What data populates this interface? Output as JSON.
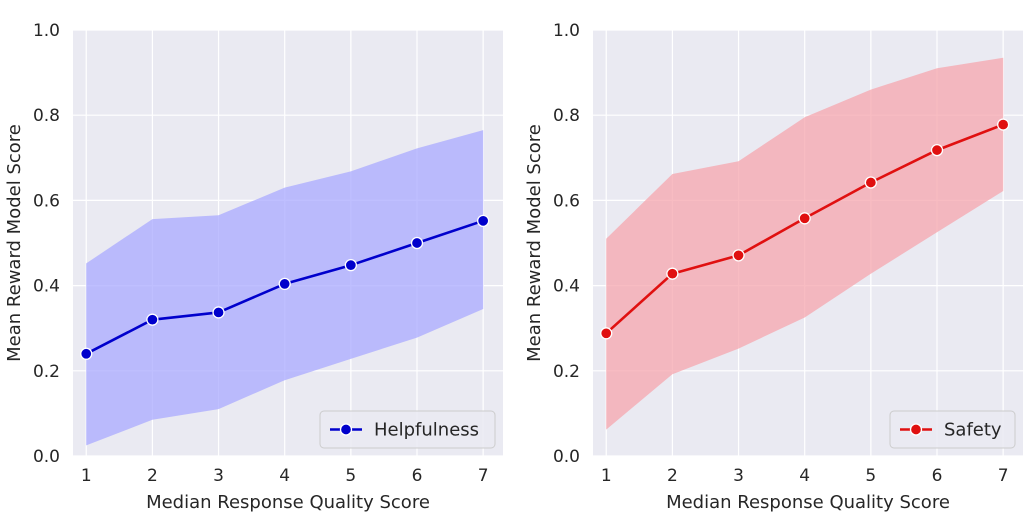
{
  "chart_data": [
    {
      "type": "line",
      "xlabel": "Median Response Quality Score",
      "ylabel": "Mean Reward Model Score",
      "x": [
        1,
        2,
        3,
        4,
        5,
        6,
        7
      ],
      "xlim": [
        0.8,
        7.3
      ],
      "ylim": [
        0.0,
        1.0
      ],
      "xticks": [
        "1",
        "2",
        "3",
        "4",
        "5",
        "6",
        "7"
      ],
      "yticks": [
        "0.0",
        "0.2",
        "0.4",
        "0.6",
        "0.8",
        "1.0"
      ],
      "grid": true,
      "legend_position": "bottom-right",
      "series": [
        {
          "name": "Helpfulness",
          "color": "#0000cc",
          "band_color": "#aaaaff",
          "values": [
            0.24,
            0.32,
            0.337,
            0.404,
            0.448,
            0.5,
            0.552
          ],
          "upper": [
            0.452,
            0.556,
            0.565,
            0.63,
            0.668,
            0.722,
            0.765
          ],
          "lower": [
            0.025,
            0.085,
            0.11,
            0.178,
            0.228,
            0.278,
            0.345
          ]
        }
      ]
    },
    {
      "type": "line",
      "xlabel": "Median Response Quality Score",
      "ylabel": "Mean Reward Model Score",
      "x": [
        1,
        2,
        3,
        4,
        5,
        6,
        7
      ],
      "xlim": [
        0.8,
        7.3
      ],
      "ylim": [
        0.0,
        1.0
      ],
      "xticks": [
        "1",
        "2",
        "3",
        "4",
        "5",
        "6",
        "7"
      ],
      "yticks": [
        "0.0",
        "0.2",
        "0.4",
        "0.6",
        "0.8",
        "1.0"
      ],
      "grid": true,
      "legend_position": "bottom-right",
      "series": [
        {
          "name": "Safety",
          "color": "#e01010",
          "band_color": "#f5a6ad",
          "values": [
            0.288,
            0.428,
            0.471,
            0.558,
            0.642,
            0.718,
            0.778
          ],
          "upper": [
            0.51,
            0.662,
            0.692,
            0.795,
            0.86,
            0.91,
            0.935
          ],
          "lower": [
            0.062,
            0.192,
            0.252,
            0.325,
            0.428,
            0.525,
            0.622
          ]
        }
      ]
    }
  ]
}
